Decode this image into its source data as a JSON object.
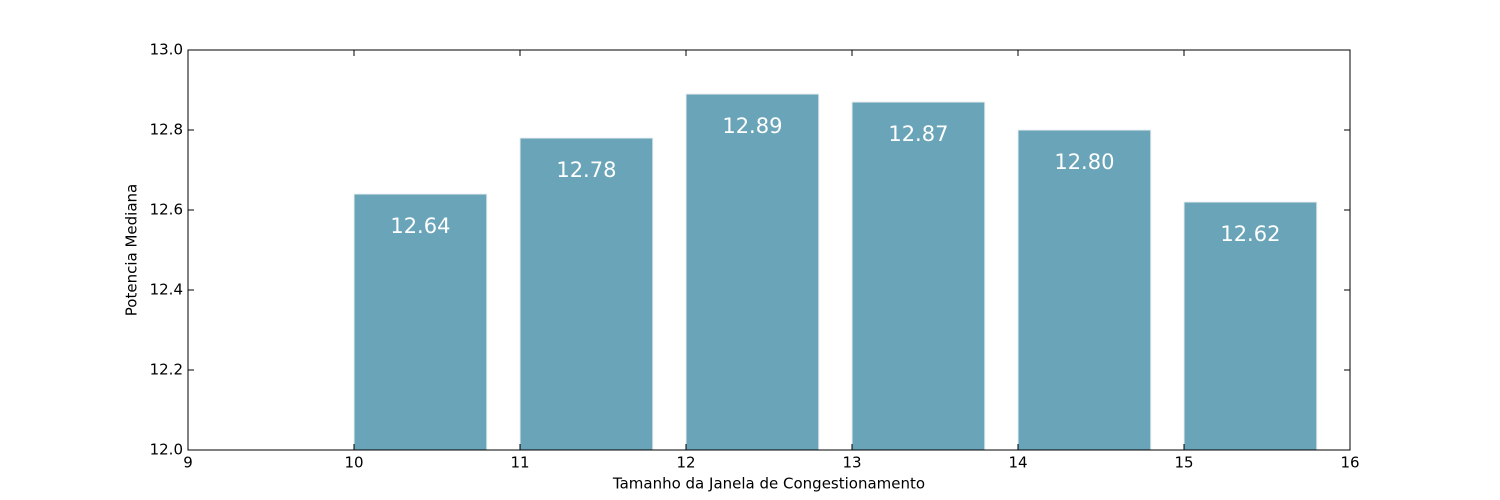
{
  "chart_data": {
    "type": "bar",
    "xlabel": "Tamanho da Janela de Congestionamento",
    "ylabel": "Potencia Mediana",
    "x": [
      10,
      11,
      12,
      13,
      14,
      15
    ],
    "values": [
      12.64,
      12.78,
      12.89,
      12.87,
      12.8,
      12.62
    ],
    "value_labels": [
      "12.64",
      "12.78",
      "12.89",
      "12.87",
      "12.80",
      "12.62"
    ],
    "color": "#6aa4b8",
    "xlim": [
      9,
      16
    ],
    "xticks": [
      9,
      10,
      11,
      12,
      13,
      14,
      15,
      16
    ],
    "ylim": [
      12,
      13
    ],
    "yticks": [
      {
        "value": 12,
        "label": "12.0"
      },
      12.2,
      12.4,
      12.6,
      12.8,
      {
        "value": 13,
        "label": "13.0"
      }
    ]
  }
}
